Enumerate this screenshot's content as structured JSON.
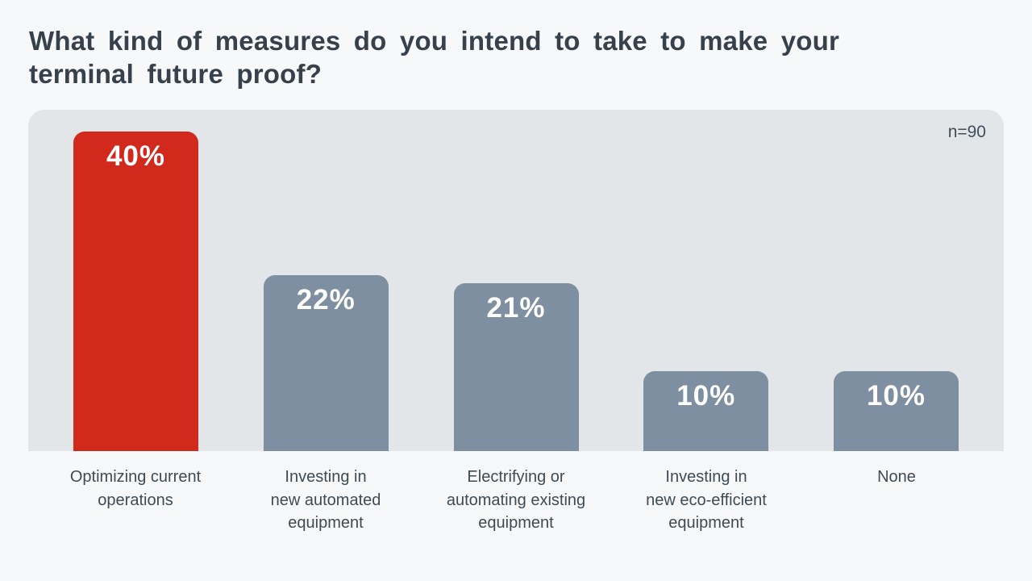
{
  "title_lines": [
    "What kind of measures do you intend to take to make your",
    "terminal future proof?"
  ],
  "chart_data": {
    "type": "bar",
    "title": "What kind of measures do you intend to take to make your terminal future proof?",
    "n_label": "n=90",
    "categories": [
      "Optimizing current operations",
      "Investing in new automated equipment",
      "Electrifying or automating existing equipment",
      "Investing in new eco-efficient equipment",
      "None"
    ],
    "category_lines": [
      [
        "Optimizing current",
        "operations"
      ],
      [
        "Investing in",
        "new automated",
        "equipment"
      ],
      [
        "Electrifying or",
        "automating existing",
        "equipment"
      ],
      [
        "Investing in",
        "new eco-efficient",
        "equipment"
      ],
      [
        "None"
      ]
    ],
    "values": [
      40,
      22,
      21,
      10,
      10
    ],
    "value_labels": [
      "40%",
      "22%",
      "21%",
      "10%",
      "10%"
    ],
    "unit": "%",
    "ylim": [
      0,
      42.7
    ],
    "grid": false,
    "legend": "none",
    "bar_colors": [
      "#d2291d",
      "#7d8fa0",
      "#7d8fa0",
      "#7d8fa0",
      "#7d8fa0"
    ],
    "highlight_color": "#d2291d",
    "default_bar_color": "#7d8fa0"
  },
  "colors": {
    "page_bg": "#f7f8fa",
    "panel_bg": "#e2e6e8",
    "title_text": "#37414b",
    "category_text": "#3e4a54",
    "n_label_text": "#414e59",
    "value_text": "#ffffff"
  }
}
